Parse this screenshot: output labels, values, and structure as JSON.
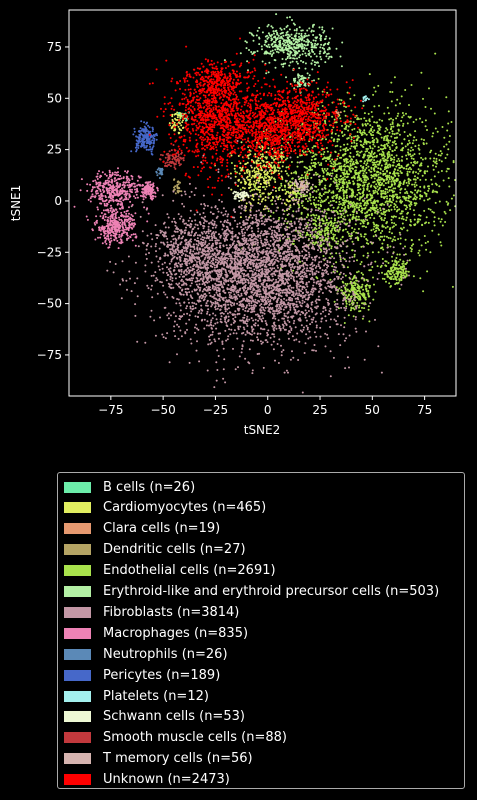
{
  "chart_data": {
    "type": "scatter",
    "xlabel": "tSNE2",
    "ylabel": "tSNE1",
    "xlim": [
      -95,
      90
    ],
    "ylim": [
      -95,
      93
    ],
    "x_ticks": [
      -75,
      -50,
      -25,
      0,
      25,
      50,
      75
    ],
    "y_ticks": [
      -75,
      -50,
      -25,
      0,
      25,
      50,
      75
    ],
    "grid": false,
    "legend_placement": "below",
    "series": [
      {
        "name": "B cells (n=26)",
        "color": "#6cedaa",
        "n": 26,
        "clusters": [
          {
            "cx": -39,
            "cy": 41,
            "sx": 1,
            "sy": 1.5,
            "w": 0.5
          },
          {
            "cx": -42,
            "cy": 42,
            "sx": 1,
            "sy": 1,
            "w": 0.5
          }
        ]
      },
      {
        "name": "Cardiomyocytes (n=465)",
        "color": "#e1ee60",
        "n": 465,
        "clusters": [
          {
            "cx": -43,
            "cy": 38,
            "sx": 2,
            "sy": 3,
            "w": 0.12
          },
          {
            "cx": -5,
            "cy": 13,
            "sx": 5,
            "sy": 9,
            "w": 0.6
          },
          {
            "cx": 3,
            "cy": 18,
            "sx": 3,
            "sy": 4,
            "w": 0.14
          },
          {
            "cx": 12,
            "cy": 3,
            "sx": 3,
            "sy": 3,
            "w": 0.14
          }
        ]
      },
      {
        "name": "Clara cells (n=19)",
        "color": "#e69970",
        "n": 19,
        "clusters": [
          {
            "cx": 17,
            "cy": 7,
            "sx": 1,
            "sy": 1,
            "w": 0.5
          },
          {
            "cx": 33,
            "cy": 43,
            "sx": 1,
            "sy": 1,
            "w": 0.5
          }
        ]
      },
      {
        "name": "Dendritic cells (n=27)",
        "color": "#b5a464",
        "n": 27,
        "clusters": [
          {
            "cx": -43,
            "cy": 7,
            "sx": 1,
            "sy": 2,
            "w": 1
          }
        ]
      },
      {
        "name": "Endothelial cells (n=2691)",
        "color": "#a9e24c",
        "n": 2691,
        "clusters": [
          {
            "cx": 47,
            "cy": 10,
            "sx": 20,
            "sy": 18,
            "w": 0.82
          },
          {
            "cx": 42,
            "cy": -45,
            "sx": 4,
            "sy": 4,
            "w": 0.08
          },
          {
            "cx": 62,
            "cy": -35,
            "sx": 3,
            "sy": 3,
            "w": 0.05
          },
          {
            "cx": 26,
            "cy": -15,
            "sx": 5,
            "sy": 4,
            "w": 0.05
          }
        ]
      },
      {
        "name": "Erythroid-like and erythroid precursor cells (n=503)",
        "color": "#b3f0a4",
        "n": 503,
        "clusters": [
          {
            "cx": 12,
            "cy": 76,
            "sx": 9,
            "sy": 5,
            "w": 0.9
          },
          {
            "cx": 16,
            "cy": 58,
            "sx": 2,
            "sy": 2,
            "w": 0.1
          }
        ]
      },
      {
        "name": "Fibroblasts (n=3814)",
        "color": "#c397a5",
        "n": 3814,
        "clusters": [
          {
            "cx": -5,
            "cy": -35,
            "sx": 22,
            "sy": 17,
            "w": 0.9
          },
          {
            "cx": -35,
            "cy": -25,
            "sx": 10,
            "sy": 8,
            "w": 0.1
          }
        ]
      },
      {
        "name": "Macrophages (n=835)",
        "color": "#ee82b5",
        "n": 835,
        "clusters": [
          {
            "cx": -73,
            "cy": 5,
            "sx": 6,
            "sy": 5,
            "w": 0.45
          },
          {
            "cx": -73,
            "cy": -13,
            "sx": 5,
            "sy": 4,
            "w": 0.4
          },
          {
            "cx": -57,
            "cy": 5,
            "sx": 2,
            "sy": 2,
            "w": 0.15
          }
        ]
      },
      {
        "name": "Neutrophils (n=26)",
        "color": "#5b89b7",
        "n": 26,
        "clusters": [
          {
            "cx": -51,
            "cy": 14,
            "sx": 1,
            "sy": 1,
            "w": 1
          }
        ]
      },
      {
        "name": "Pericytes (n=189)",
        "color": "#4668c9",
        "n": 189,
        "clusters": [
          {
            "cx": -58,
            "cy": 30,
            "sx": 2.5,
            "sy": 3,
            "w": 1
          }
        ]
      },
      {
        "name": "Platelets (n=12)",
        "color": "#a4f0ee",
        "n": 12,
        "clusters": [
          {
            "cx": 47,
            "cy": 50,
            "sx": 1,
            "sy": 1,
            "w": 1
          }
        ]
      },
      {
        "name": "Schwann cells (n=53)",
        "color": "#eef8d4",
        "n": 53,
        "clusters": [
          {
            "cx": -13,
            "cy": 3,
            "sx": 2,
            "sy": 1,
            "w": 1
          }
        ]
      },
      {
        "name": "Smooth muscle cells (n=88)",
        "color": "#c2393d",
        "n": 88,
        "clusters": [
          {
            "cx": -45,
            "cy": 21,
            "sx": 3,
            "sy": 2,
            "w": 1
          }
        ]
      },
      {
        "name": "T memory cells (n=56)",
        "color": "#d6b4b0",
        "n": 56,
        "clusters": [
          {
            "cx": 16,
            "cy": 7,
            "sx": 2,
            "sy": 2,
            "w": 1
          }
        ]
      },
      {
        "name": "Unknown (n=2473)",
        "color": "#ff0000",
        "n": 2473,
        "clusters": [
          {
            "cx": -22,
            "cy": 40,
            "sx": 11,
            "sy": 12,
            "w": 0.45
          },
          {
            "cx": 14,
            "cy": 40,
            "sx": 11,
            "sy": 8,
            "w": 0.35
          },
          {
            "cx": -25,
            "cy": 58,
            "sx": 6,
            "sy": 4,
            "w": 0.1
          },
          {
            "cx": 0,
            "cy": 30,
            "sx": 6,
            "sy": 8,
            "w": 0.1
          }
        ]
      }
    ]
  }
}
